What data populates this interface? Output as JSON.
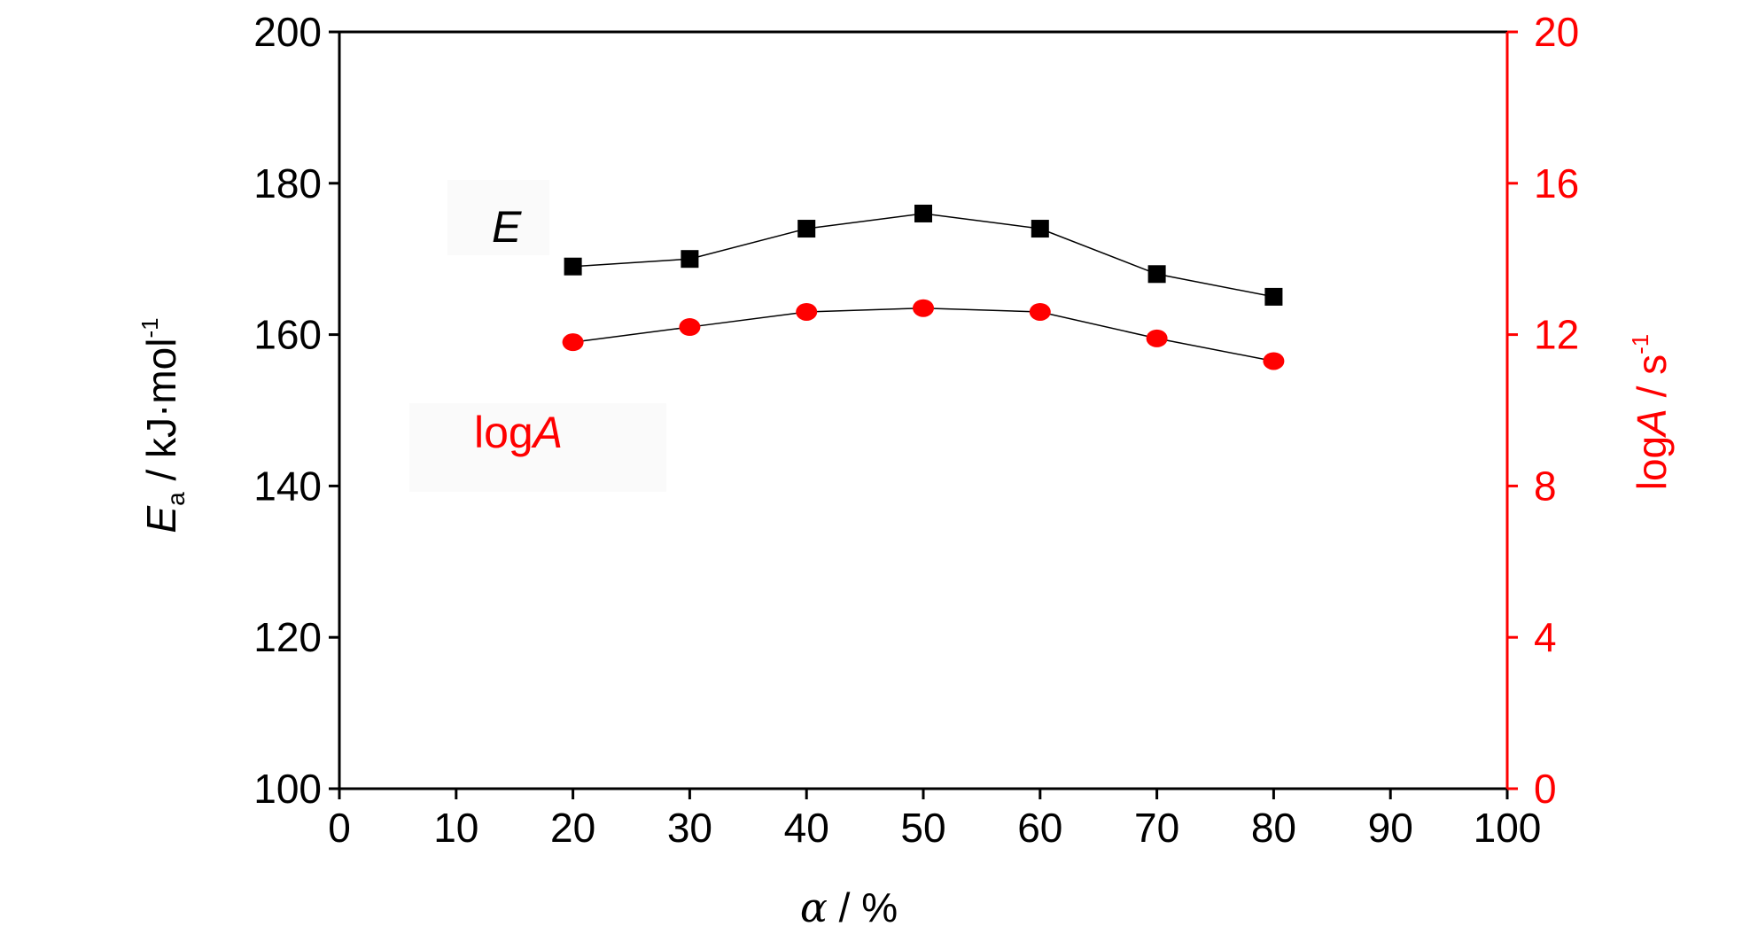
{
  "chart_data": {
    "type": "scatter",
    "x_label": "α / %",
    "y_left_label": "Ea / kJ·mol-1",
    "y_right_label": "logA / s-1",
    "xlim": [
      0,
      100
    ],
    "ylim_left": [
      100,
      200
    ],
    "ylim_right": [
      0,
      20
    ],
    "x_ticks": [
      "0",
      "10",
      "20",
      "30",
      "40",
      "50",
      "60",
      "70",
      "80",
      "90",
      "100"
    ],
    "y_left_ticks": [
      "100",
      "120",
      "140",
      "160",
      "180",
      "200"
    ],
    "y_right_ticks": [
      "0",
      "4",
      "8",
      "12",
      "16",
      "20"
    ],
    "colors": {
      "E": "#000000",
      "logA": "#ff0000"
    },
    "series": [
      {
        "name": "E",
        "axis": "left",
        "marker": "square",
        "x": [
          20,
          30,
          40,
          50,
          60,
          70,
          80
        ],
        "y": [
          169,
          170,
          174,
          176,
          174,
          168,
          165
        ]
      },
      {
        "name": "logA",
        "axis": "right",
        "marker": "circle",
        "x": [
          20,
          30,
          40,
          50,
          60,
          70,
          80
        ],
        "y": [
          11.8,
          12.2,
          12.6,
          12.7,
          12.6,
          11.9,
          11.3
        ]
      }
    ],
    "annotations": [
      {
        "text_main": "E",
        "italic": true,
        "series": "E"
      },
      {
        "text_prefix": "log",
        "text_italic": "A",
        "series": "logA"
      }
    ]
  }
}
